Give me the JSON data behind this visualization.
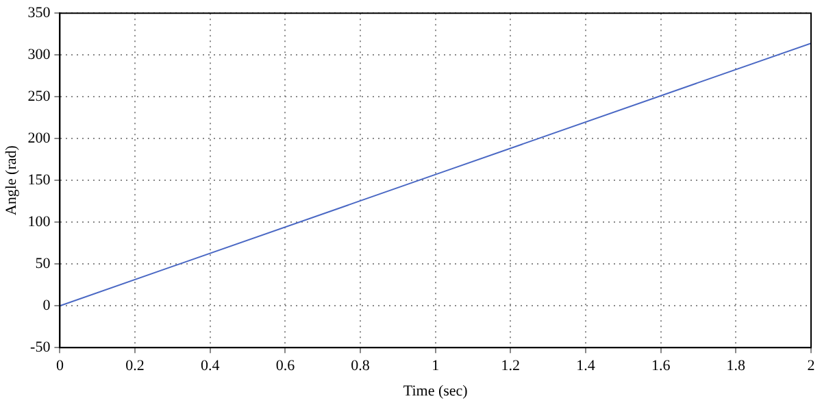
{
  "chart_data": {
    "type": "line",
    "xlabel": "Time (sec)",
    "ylabel": "Angle (rad)",
    "x": [
      0,
      1,
      2
    ],
    "series": [
      {
        "color": "#4a68c4",
        "values": [
          0,
          157,
          314
        ]
      }
    ],
    "xlim": [
      0,
      2
    ],
    "xticks": [
      0,
      0.2,
      0.4,
      0.6,
      0.8,
      1,
      1.2,
      1.4,
      1.6,
      1.8,
      2
    ],
    "ylim": [
      -50,
      350
    ],
    "yticks": [
      -50,
      0,
      50,
      100,
      150,
      200,
      250,
      300,
      350
    ],
    "grid": true,
    "legend": false,
    "marker": "none",
    "line_style": "solid"
  }
}
